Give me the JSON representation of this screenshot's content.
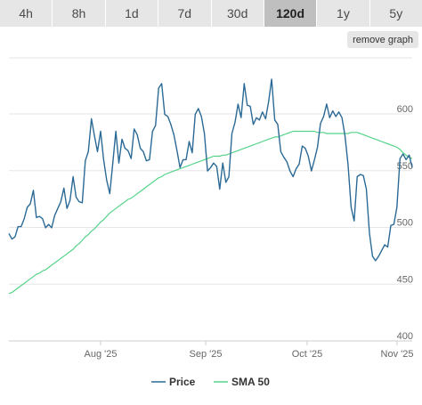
{
  "tabs": [
    {
      "label": "4h",
      "active": false
    },
    {
      "label": "8h",
      "active": false
    },
    {
      "label": "1d",
      "active": false
    },
    {
      "label": "7d",
      "active": false
    },
    {
      "label": "30d",
      "active": false
    },
    {
      "label": "120d",
      "active": true
    },
    {
      "label": "1y",
      "active": false
    },
    {
      "label": "5y",
      "active": false
    }
  ],
  "remove_graph_label": "remove graph",
  "colors": {
    "price": "#2b6a96",
    "sma": "#55d38a",
    "grid": "#e6e6e6",
    "tab_bg": "#e6e6e6",
    "tab_active": "#bfbfbf"
  },
  "chart_data": {
    "type": "line",
    "x_ticks": [
      "Aug '25",
      "Sep '25",
      "Oct '25",
      "Nov '25"
    ],
    "y_ticks": [
      400,
      450,
      500,
      550,
      600
    ],
    "ylim": [
      400,
      600
    ],
    "grid": true,
    "legend_position": "bottom-center",
    "series": [
      {
        "name": "Price",
        "values": [
          490,
          485,
          487,
          496,
          496,
          503,
          513,
          516,
          528,
          504,
          505,
          503,
          495,
          498,
          495,
          506,
          512,
          518,
          530,
          512,
          519,
          540,
          522,
          518,
          517,
          554,
          562,
          591,
          576,
          562,
          580,
          555,
          537,
          525,
          552,
          580,
          552,
          573,
          565,
          563,
          556,
          582,
          577,
          565,
          562,
          554,
          555,
          580,
          585,
          618,
          622,
          595,
          593,
          586,
          577,
          563,
          548,
          555,
          555,
          571,
          561,
          595,
          600,
          593,
          578,
          545,
          548,
          552,
          549,
          529,
          552,
          535,
          540,
          578,
          588,
          604,
          592,
          622,
          603,
          602,
          586,
          592,
          590,
          597,
          591,
          606,
          626,
          590,
          586,
          562,
          557,
          553,
          545,
          540,
          547,
          551,
          567,
          565,
          558,
          545,
          555,
          566,
          587,
          593,
          604,
          592,
          598,
          593,
          597,
          592,
          576,
          551,
          513,
          501,
          540,
          542,
          541,
          529,
          490,
          470,
          466,
          470,
          475,
          480,
          478,
          497,
          498,
          513,
          556,
          560,
          555,
          559,
          548
        ]
      },
      {
        "name": "SMA 50",
        "values": [
          437,
          438,
          440,
          442,
          444,
          446,
          448,
          450,
          452,
          454,
          455,
          457,
          458,
          460,
          462,
          464,
          466,
          468,
          470,
          472,
          474,
          476,
          479,
          481,
          484,
          487,
          489,
          492,
          494,
          497,
          500,
          502,
          505,
          508,
          510,
          512,
          514,
          516,
          518,
          520,
          521,
          523,
          525,
          527,
          529,
          531,
          533,
          535,
          537,
          539,
          540,
          542,
          543,
          544,
          545,
          546,
          547,
          548,
          549,
          550,
          551,
          552,
          553,
          554,
          555,
          556,
          557,
          558,
          558,
          558,
          559,
          559,
          560,
          561,
          562,
          563,
          564,
          565,
          566,
          567,
          568,
          569,
          570,
          571,
          572,
          573,
          574,
          575,
          575,
          576,
          577,
          578,
          579,
          580,
          580,
          580,
          580,
          580,
          580,
          580,
          580,
          579,
          579,
          579,
          578,
          578,
          578,
          578,
          578,
          578,
          578,
          578,
          579,
          579,
          579,
          578,
          577,
          576,
          575,
          574,
          573,
          572,
          571,
          570,
          569,
          568,
          567,
          566,
          564,
          561,
          559,
          557,
          556
        ]
      }
    ]
  }
}
